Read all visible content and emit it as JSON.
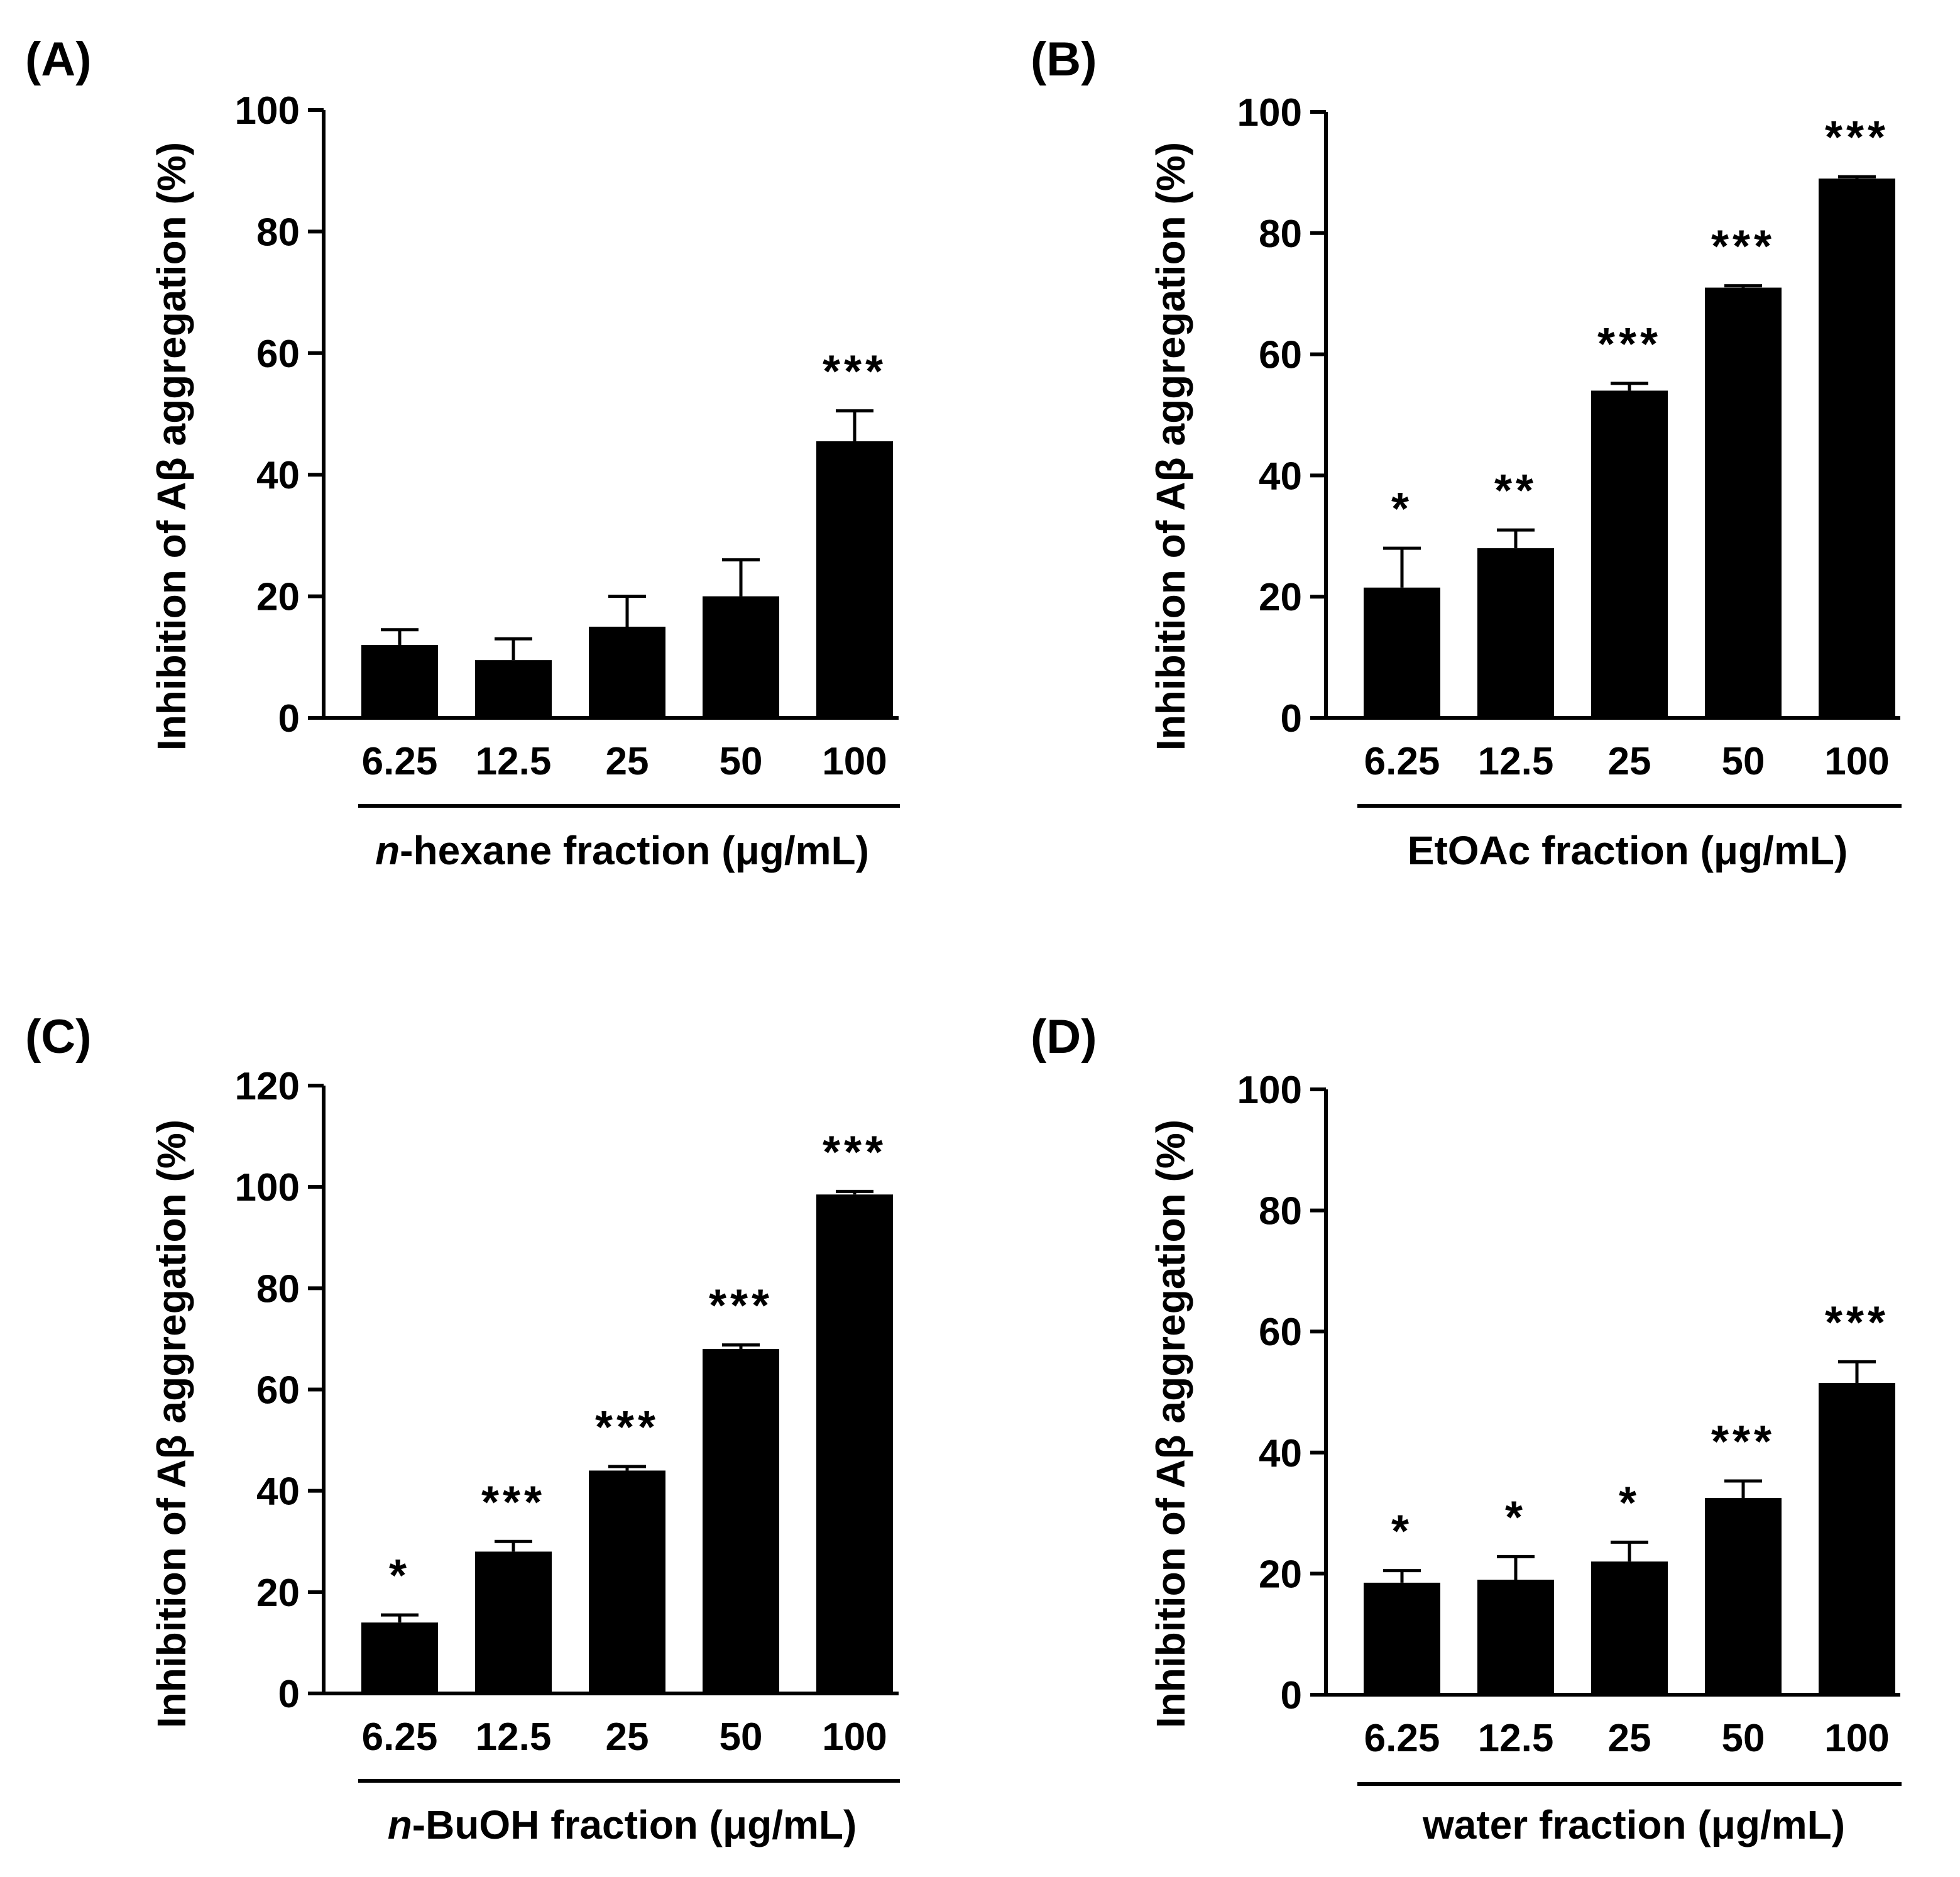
{
  "figure": {
    "colors": {
      "bar": "#000000",
      "axis": "#000000",
      "background": "#ffffff"
    }
  },
  "chart_data": [
    {
      "type": "bar",
      "panel_label": "(A)",
      "ylabel": "Inhibition of Aβ aggregation (%)",
      "xlabel_italic": "n",
      "xlabel_rest": "-hexane fraction (μg/mL)",
      "categories": [
        "6.25",
        "12.5",
        "25",
        "50",
        "100"
      ],
      "values": [
        12,
        9.5,
        15,
        20,
        45.5
      ],
      "errors": [
        2.5,
        3.5,
        5,
        6,
        5
      ],
      "significance": [
        "",
        "",
        "",
        "",
        "***"
      ],
      "ylim": [
        0,
        100
      ],
      "yticks": [
        0,
        20,
        40,
        60,
        80,
        100
      ]
    },
    {
      "type": "bar",
      "panel_label": "(B)",
      "ylabel": "Inhibition of Aβ aggregation (%)",
      "xlabel_italic": "",
      "xlabel_rest": "EtOAc fraction (μg/mL)",
      "categories": [
        "6.25",
        "12.5",
        "25",
        "50",
        "100"
      ],
      "values": [
        21.5,
        28,
        54,
        71,
        89
      ],
      "errors": [
        6.5,
        3,
        1.2,
        0.3,
        0.3
      ],
      "significance": [
        "*",
        "**",
        "***",
        "***",
        "***"
      ],
      "ylim": [
        0,
        100
      ],
      "yticks": [
        0,
        20,
        40,
        60,
        80,
        100
      ]
    },
    {
      "type": "bar",
      "panel_label": "(C)",
      "ylabel": "Inhibition of Aβ aggregation (%)",
      "xlabel_italic": "n",
      "xlabel_rest": "-BuOH fraction (μg/mL)",
      "categories": [
        "6.25",
        "12.5",
        "25",
        "50",
        "100"
      ],
      "values": [
        14,
        28,
        44,
        68,
        98.5
      ],
      "errors": [
        1.5,
        2,
        0.8,
        0.8,
        0.6
      ],
      "significance": [
        "*",
        "***",
        "***",
        "***",
        "***"
      ],
      "ylim": [
        0,
        120
      ],
      "yticks": [
        0,
        20,
        40,
        60,
        80,
        100,
        120
      ]
    },
    {
      "type": "bar",
      "panel_label": "(D)",
      "ylabel": "Inhibition of Aβ aggregation (%)",
      "xlabel_italic": "",
      "xlabel_rest": "water fraction (μg/mL)",
      "categories": [
        "6.25",
        "12.5",
        "25",
        "50",
        "100"
      ],
      "values": [
        18.5,
        19,
        22,
        32.5,
        51.5
      ],
      "errors": [
        2,
        3.8,
        3.2,
        2.8,
        3.5
      ],
      "significance": [
        "*",
        "*",
        "*",
        "***",
        "***"
      ],
      "ylim": [
        0,
        100
      ],
      "yticks": [
        0,
        20,
        40,
        60,
        80,
        100
      ]
    }
  ]
}
